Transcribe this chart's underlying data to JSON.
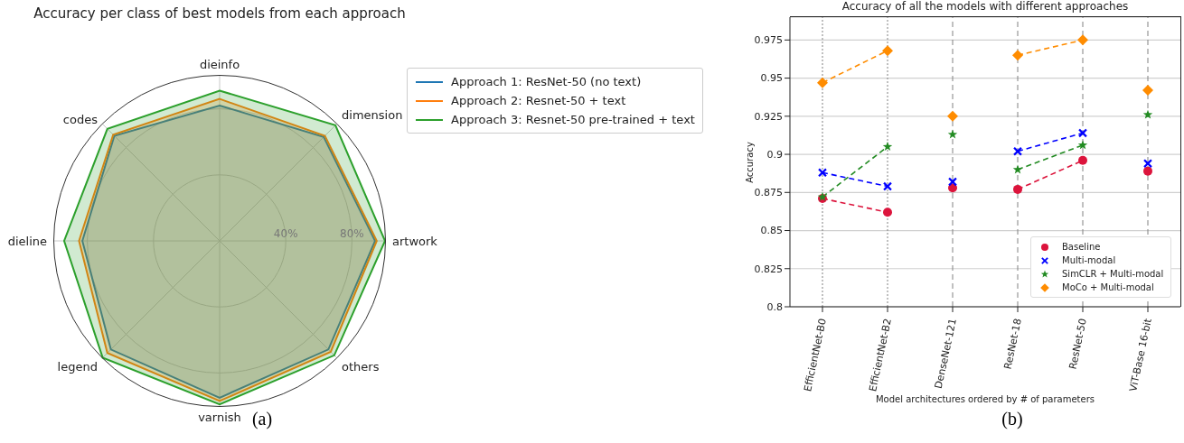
{
  "chart_data": [
    {
      "type": "radar",
      "title": "Accuracy per class of best models from each approach",
      "categories": [
        "dieinfo",
        "dimension",
        "artwork",
        "others",
        "varnish",
        "legend",
        "dieline",
        "codes"
      ],
      "series": [
        {
          "name": "Approach 1: ResNet-50 (no text)",
          "color": "#1f77b4",
          "values": [
            0.82,
            0.89,
            0.94,
            0.93,
            0.95,
            0.93,
            0.83,
            0.9
          ]
        },
        {
          "name": "Approach 2: Resnet-50 + text",
          "color": "#ff7f0e",
          "values": [
            0.86,
            0.9,
            0.95,
            0.95,
            0.97,
            0.96,
            0.85,
            0.91
          ]
        },
        {
          "name": "Approach 3: Resnet-50 pre-trained + text",
          "color": "#2ca02c",
          "values": [
            0.91,
            0.99,
            1.0,
            0.98,
            0.99,
            1.0,
            0.94,
            0.96
          ]
        }
      ],
      "ylim": [
        0,
        1
      ],
      "yticks": [
        {
          "value": 0.4,
          "label": "40%"
        },
        {
          "value": 0.8,
          "label": "80%"
        }
      ],
      "grid": true,
      "legend": "right",
      "annotations": [
        "(a)"
      ]
    },
    {
      "type": "line",
      "title": "Accuracy of all the models with different approaches",
      "xlabel": "Model architectures ordered by # of parameters",
      "ylabel": "Accuracy",
      "categories": [
        "EfficientNet-B0",
        "EfficientNet-B2",
        "DenseNet-121",
        "ResNet-18",
        "ResNet-50",
        "ViT-Base 16-bit"
      ],
      "ylim": [
        0.8,
        0.99
      ],
      "yticks": [
        0.8,
        0.825,
        0.85,
        0.875,
        0.9,
        0.925,
        0.95,
        0.975
      ],
      "grid": "y",
      "legend": "bottom right",
      "line_style": "dashed",
      "ref_lines": [
        {
          "axis": "x",
          "value": "EfficientNet-B0",
          "color": "#808080",
          "line_style": "dotted"
        },
        {
          "axis": "x",
          "value": "EfficientNet-B2",
          "color": "#808080",
          "line_style": "dotted"
        },
        {
          "axis": "x",
          "value": "DenseNet-121",
          "color": "#808080",
          "line_style": "dashed"
        },
        {
          "axis": "x",
          "value": "ResNet-18",
          "color": "#808080",
          "line_style": "dashed"
        },
        {
          "axis": "x",
          "value": "ResNet-50",
          "color": "#808080",
          "line_style": "dashed"
        },
        {
          "axis": "x",
          "value": "ViT-Base 16-bit",
          "color": "#808080",
          "line_style": "dashed"
        }
      ],
      "series": [
        {
          "name": "Baseline",
          "color": "#dc143c",
          "marker": "circle",
          "values": [
            0.871,
            0.862,
            null,
            0.877,
            0.896,
            null
          ]
        },
        {
          "name": "Multi-modal",
          "color": "#0000ff",
          "marker": "cross",
          "values": [
            0.888,
            0.879,
            null,
            0.902,
            0.914,
            null
          ]
        },
        {
          "name": "SimCLR + Multi-modal",
          "color": "#228b22",
          "marker": "star",
          "values": [
            0.872,
            0.905,
            null,
            0.89,
            0.906,
            null
          ]
        },
        {
          "name": "MoCo + Multi-modal",
          "color": "#ff8c00",
          "marker": "diamond",
          "values": [
            0.947,
            0.968,
            null,
            0.965,
            0.975,
            null
          ]
        },
        {
          "type": "scatter",
          "color": "#dc143c",
          "marker": "circle",
          "x": [
            "DenseNet-121",
            "ViT-Base 16-bit"
          ],
          "values": [
            0.878,
            0.889
          ]
        },
        {
          "type": "scatter",
          "color": "#0000ff",
          "marker": "cross",
          "x": [
            "DenseNet-121",
            "ViT-Base 16-bit"
          ],
          "values": [
            0.882,
            0.894
          ]
        },
        {
          "type": "scatter",
          "color": "#228b22",
          "marker": "star",
          "x": [
            "DenseNet-121",
            "ViT-Base 16-bit"
          ],
          "values": [
            0.913,
            0.926
          ]
        },
        {
          "type": "scatter",
          "color": "#ff8c00",
          "marker": "diamond",
          "x": [
            "DenseNet-121",
            "ViT-Base 16-bit"
          ],
          "values": [
            0.925,
            0.942
          ]
        }
      ],
      "annotations": [
        "(b)"
      ]
    }
  ]
}
